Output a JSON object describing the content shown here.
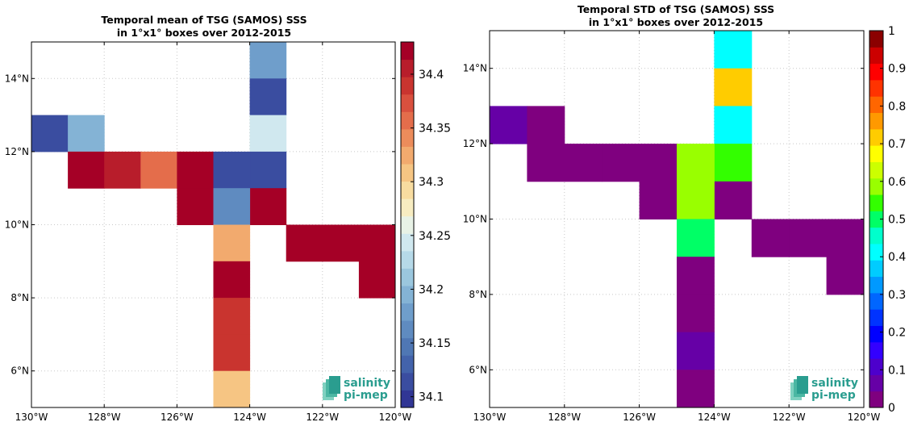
{
  "chart_data": [
    {
      "type": "heatmap",
      "title": "Temporal mean of TSG (SAMOS) SSS",
      "subtitle": "in 1°x1° boxes over 2012-2015",
      "xlim": [
        -130,
        -120
      ],
      "ylim": [
        5,
        15
      ],
      "xticks": [
        -130,
        -128,
        -126,
        -124,
        -122,
        -120
      ],
      "yticks": [
        6,
        8,
        10,
        12,
        14
      ],
      "grid": true,
      "xtick_labels": [
        "130°W",
        "128°W",
        "126°W",
        "124°W",
        "122°W",
        "120°W"
      ],
      "ytick_labels": [
        "6°N",
        "8°N",
        "10°N",
        "12°N",
        "14°N"
      ],
      "colorbar": {
        "range": [
          34.09,
          34.43
        ],
        "step": 0.0136,
        "ticks": [
          34.1,
          34.15,
          34.2,
          34.25,
          34.3,
          34.35,
          34.4
        ],
        "tick_labels": [
          "34.1",
          "34.15",
          "34.2",
          "34.25",
          "34.3",
          "34.35",
          "34.4"
        ],
        "colors": [
          "#313695",
          "#3a4da0",
          "#4363ab",
          "#4f77b4",
          "#5f8bc0",
          "#6f9ecb",
          "#84b3d5",
          "#9bc7de",
          "#b6d9e8",
          "#d0e8ef",
          "#e8f2e6",
          "#f7ecc1",
          "#f8dca0",
          "#f6c583",
          "#f2aa6e",
          "#ec8c5b",
          "#e46d4b",
          "#d9503e",
          "#c9342f",
          "#b81d2b",
          "#a50026"
        ]
      },
      "cells": [
        {
          "lon": -124,
          "lat": 14,
          "value": 34.18
        },
        {
          "lon": -124,
          "lat": 13,
          "value": 34.12
        },
        {
          "lon": -124,
          "lat": 12,
          "value": 34.24
        },
        {
          "lon": -124,
          "lat": 11,
          "value": 34.11
        },
        {
          "lon": -124,
          "lat": 10,
          "value": 34.42
        },
        {
          "lon": -130,
          "lat": 12,
          "value": 34.11
        },
        {
          "lon": -129,
          "lat": 12,
          "value": 34.2
        },
        {
          "lon": -129,
          "lat": 11,
          "value": 34.43
        },
        {
          "lon": -128,
          "lat": 11,
          "value": 34.41
        },
        {
          "lon": -127,
          "lat": 11,
          "value": 34.36
        },
        {
          "lon": -126,
          "lat": 11,
          "value": 34.43
        },
        {
          "lon": -126,
          "lat": 10,
          "value": 34.43
        },
        {
          "lon": -125,
          "lat": 11,
          "value": 34.11
        },
        {
          "lon": -125,
          "lat": 10,
          "value": 34.17
        },
        {
          "lon": -125,
          "lat": 9,
          "value": 34.33
        },
        {
          "lon": -125,
          "lat": 8,
          "value": 34.43
        },
        {
          "lon": -125,
          "lat": 7,
          "value": 34.39
        },
        {
          "lon": -125,
          "lat": 6,
          "value": 34.39
        },
        {
          "lon": -125,
          "lat": 5,
          "value": 34.31
        },
        {
          "lon": -123,
          "lat": 9,
          "value": 34.43
        },
        {
          "lon": -122,
          "lat": 9,
          "value": 34.43
        },
        {
          "lon": -121,
          "lat": 9,
          "value": 34.43
        },
        {
          "lon": -121,
          "lat": 8,
          "value": 34.43
        }
      ],
      "logo": {
        "line1": "salinity",
        "line2": "pi-mep"
      }
    },
    {
      "type": "heatmap",
      "title": "Temporal STD of TSG (SAMOS) SSS",
      "subtitle": "in 1°x1° boxes over 2012-2015",
      "xlim": [
        -130,
        -120
      ],
      "ylim": [
        5,
        15
      ],
      "xticks": [
        -130,
        -128,
        -126,
        -124,
        -122,
        -120
      ],
      "yticks": [
        6,
        8,
        10,
        12,
        14
      ],
      "grid": true,
      "xtick_labels": [
        "130°W",
        "128°W",
        "126°W",
        "124°W",
        "122°W",
        "120°W"
      ],
      "ytick_labels": [
        "6°N",
        "8°N",
        "10°N",
        "12°N",
        "14°N"
      ],
      "colorbar": {
        "range": [
          0,
          1
        ],
        "step": 0.05,
        "ticks": [
          0,
          0.1,
          0.2,
          0.3,
          0.4,
          0.5,
          0.6,
          0.7,
          0.8,
          0.9,
          1
        ],
        "tick_labels": [
          "0",
          "0.1",
          "0.2",
          "0.3",
          "0.4",
          "0.5",
          "0.6",
          "0.7",
          "0.8",
          "0.9",
          "1"
        ],
        "colors": [
          "#7f007f",
          "#6600a6",
          "#4d00cc",
          "#3300ff",
          "#0000ff",
          "#0033ff",
          "#0066ff",
          "#0099ff",
          "#00ccff",
          "#00ffff",
          "#00ffcc",
          "#00ff66",
          "#33ff00",
          "#99ff00",
          "#ccff00",
          "#ffff00",
          "#ffcc00",
          "#ff9900",
          "#ff6600",
          "#ff3300",
          "#ff0000",
          "#cc0000",
          "#8b0000"
        ]
      },
      "cells": [
        {
          "lon": -124,
          "lat": 14,
          "value": 0.42
        },
        {
          "lon": -124,
          "lat": 13,
          "value": 0.73
        },
        {
          "lon": -124,
          "lat": 12,
          "value": 0.42
        },
        {
          "lon": -124,
          "lat": 11,
          "value": 0.53
        },
        {
          "lon": -124,
          "lat": 10,
          "value": 0.01
        },
        {
          "lon": -130,
          "lat": 12,
          "value": 0.06
        },
        {
          "lon": -129,
          "lat": 12,
          "value": 0.01
        },
        {
          "lon": -129,
          "lat": 11,
          "value": 0.01
        },
        {
          "lon": -128,
          "lat": 11,
          "value": 0.01
        },
        {
          "lon": -127,
          "lat": 11,
          "value": 0.01
        },
        {
          "lon": -126,
          "lat": 11,
          "value": 0.01
        },
        {
          "lon": -126,
          "lat": 10,
          "value": 0.01
        },
        {
          "lon": -125,
          "lat": 11,
          "value": 0.57
        },
        {
          "lon": -125,
          "lat": 10,
          "value": 0.57
        },
        {
          "lon": -125,
          "lat": 9,
          "value": 0.52
        },
        {
          "lon": -125,
          "lat": 8,
          "value": 0.01
        },
        {
          "lon": -125,
          "lat": 7,
          "value": 0.01
        },
        {
          "lon": -125,
          "lat": 6,
          "value": 0.06
        },
        {
          "lon": -125,
          "lat": 5,
          "value": 0.01
        },
        {
          "lon": -123,
          "lat": 9,
          "value": 0.01
        },
        {
          "lon": -122,
          "lat": 9,
          "value": 0.01
        },
        {
          "lon": -121,
          "lat": 9,
          "value": 0.01
        },
        {
          "lon": -121,
          "lat": 8,
          "value": 0.01
        }
      ],
      "logo": {
        "line1": "salinity",
        "line2": "pi-mep"
      }
    }
  ]
}
